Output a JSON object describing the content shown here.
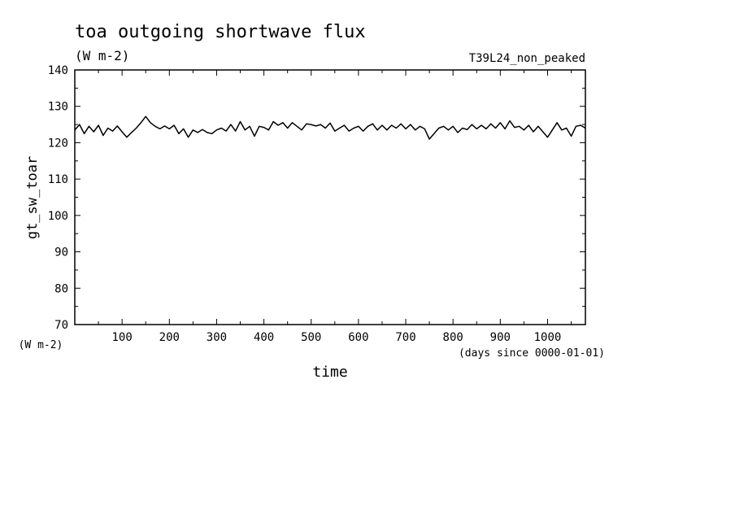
{
  "chart_data": {
    "type": "line",
    "title": "toa outgoing shortwave flux",
    "subtitle": "(W m-2)",
    "run_label": "T39L24_non_peaked",
    "xlabel": "time",
    "x_units": "(days since 0000-01-01)",
    "ylabel": "gt_sw_toar",
    "y_units": "(W m-2)",
    "xlim": [
      0,
      1080
    ],
    "ylim": [
      70,
      140
    ],
    "x_ticks": [
      100,
      200,
      300,
      400,
      500,
      600,
      700,
      800,
      900,
      1000
    ],
    "y_ticks": [
      70,
      80,
      90,
      100,
      110,
      120,
      130,
      140
    ],
    "grid": false,
    "series": [
      {
        "x": [
          0,
          10,
          20,
          30,
          40,
          50,
          60,
          70,
          80,
          90,
          100,
          110,
          120,
          130,
          140,
          150,
          160,
          170,
          180,
          190,
          200,
          210,
          220,
          230,
          240,
          250,
          260,
          270,
          280,
          290,
          300,
          310,
          320,
          330,
          340,
          350,
          360,
          370,
          380,
          390,
          400,
          410,
          420,
          430,
          440,
          450,
          460,
          470,
          480,
          490,
          500,
          510,
          520,
          530,
          540,
          550,
          560,
          570,
          580,
          590,
          600,
          610,
          620,
          630,
          640,
          650,
          660,
          670,
          680,
          690,
          700,
          710,
          720,
          730,
          740,
          750,
          760,
          770,
          780,
          790,
          800,
          810,
          820,
          830,
          840,
          850,
          860,
          870,
          880,
          890,
          900,
          910,
          920,
          930,
          940,
          950,
          960,
          970,
          980,
          990,
          1000,
          1010,
          1020,
          1030,
          1040,
          1050,
          1060,
          1070,
          1080
        ],
        "values": [
          123.5,
          125.0,
          122.5,
          124.5,
          123.0,
          124.8,
          122.0,
          124.0,
          123.2,
          124.6,
          123.0,
          121.5,
          122.8,
          124.0,
          125.5,
          127.2,
          125.5,
          124.5,
          123.8,
          124.6,
          123.8,
          124.8,
          122.5,
          123.8,
          121.5,
          123.5,
          122.8,
          123.6,
          122.8,
          122.5,
          123.5,
          124.0,
          123.2,
          125.0,
          123.2,
          125.8,
          123.5,
          124.5,
          121.8,
          124.5,
          124.2,
          123.5,
          125.8,
          124.8,
          125.5,
          124.0,
          125.5,
          124.5,
          123.5,
          125.2,
          125.0,
          124.6,
          125.0,
          124.0,
          125.4,
          123.2,
          124.0,
          124.8,
          123.2,
          124.0,
          124.5,
          123.2,
          124.5,
          125.2,
          123.5,
          124.8,
          123.5,
          124.8,
          124.0,
          125.2,
          123.8,
          125.0,
          123.5,
          124.5,
          123.8,
          121.0,
          122.5,
          124.0,
          124.5,
          123.5,
          124.5,
          122.8,
          124.0,
          123.6,
          125.0,
          123.8,
          124.8,
          123.8,
          125.2,
          124.0,
          125.5,
          123.8,
          126.0,
          124.2,
          124.5,
          123.5,
          124.8,
          123.0,
          124.5,
          123.0,
          121.5,
          123.5,
          125.5,
          123.5,
          124.0,
          121.8,
          124.5,
          124.8,
          124.0
        ]
      }
    ]
  }
}
